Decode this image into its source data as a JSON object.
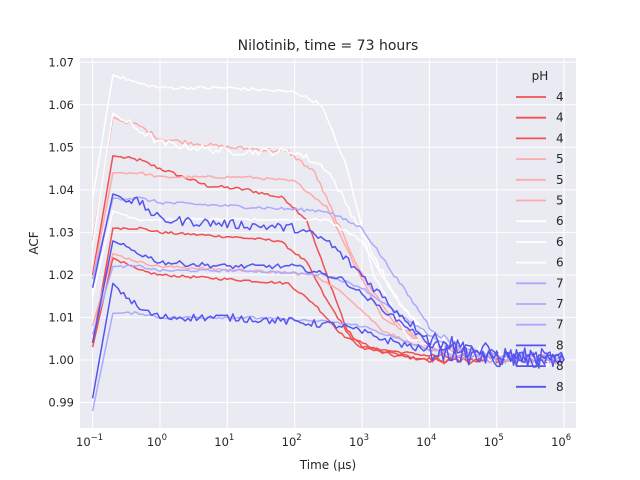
{
  "chart_data": {
    "type": "line",
    "title": "Nilotinib, time = 73 hours",
    "xlabel": "Time (μs)",
    "ylabel": "ACF",
    "xscale": "log",
    "xlim": [
      0.065,
      1500000
    ],
    "ylim": [
      0.984,
      1.071
    ],
    "x_ticks": [
      {
        "value": 0.1,
        "base": "10",
        "exp": "−1"
      },
      {
        "value": 1,
        "base": "10",
        "exp": "0"
      },
      {
        "value": 10,
        "base": "10",
        "exp": "1"
      },
      {
        "value": 100,
        "base": "10",
        "exp": "2"
      },
      {
        "value": 1000,
        "base": "10",
        "exp": "3"
      },
      {
        "value": 10000,
        "base": "10",
        "exp": "4"
      },
      {
        "value": 100000,
        "base": "10",
        "exp": "5"
      },
      {
        "value": 1000000,
        "base": "10",
        "exp": "6"
      }
    ],
    "y_ticks": [
      {
        "value": 0.99,
        "label": "0.99"
      },
      {
        "value": 1.0,
        "label": "1.00"
      },
      {
        "value": 1.01,
        "label": "1.01"
      },
      {
        "value": 1.02,
        "label": "1.02"
      },
      {
        "value": 1.03,
        "label": "1.03"
      },
      {
        "value": 1.04,
        "label": "1.04"
      },
      {
        "value": 1.05,
        "label": "1.05"
      },
      {
        "value": 1.06,
        "label": "1.06"
      },
      {
        "value": 1.07,
        "label": "1.07"
      }
    ],
    "grid": true,
    "background": "#eaeaf2",
    "legend": {
      "title": "pH",
      "placement": "right"
    },
    "series": [
      {
        "name": "4",
        "color": "#f05050",
        "noise": 0.0004,
        "points": [
          [
            0.1,
            1.02
          ],
          [
            0.2,
            1.048
          ],
          [
            0.5,
            1.047
          ],
          [
            1,
            1.045
          ],
          [
            5,
            1.041
          ],
          [
            20,
            1.04
          ],
          [
            70,
            1.038
          ],
          [
            150,
            1.033
          ],
          [
            300,
            1.02
          ],
          [
            600,
            1.007
          ],
          [
            1000,
            1.003
          ],
          [
            3000,
            1.001
          ],
          [
            10000,
            1.0
          ],
          [
            30000,
            1.0
          ],
          [
            100000,
            1.0
          ],
          [
            1000000,
            1.0
          ]
        ]
      },
      {
        "name": "4",
        "color": "#f05050",
        "noise": 0.0003,
        "points": [
          [
            0.1,
            1.004
          ],
          [
            0.2,
            1.031
          ],
          [
            0.5,
            1.031
          ],
          [
            1,
            1.03
          ],
          [
            10,
            1.029
          ],
          [
            60,
            1.028
          ],
          [
            150,
            1.023
          ],
          [
            300,
            1.014
          ],
          [
            700,
            1.005
          ],
          [
            2000,
            1.002
          ],
          [
            10000,
            1.0
          ],
          [
            100000,
            1.0
          ],
          [
            1000000,
            1.0
          ]
        ]
      },
      {
        "name": "4",
        "color": "#f05050",
        "noise": 0.0003,
        "points": [
          [
            0.1,
            1.003
          ],
          [
            0.2,
            1.024
          ],
          [
            0.5,
            1.021
          ],
          [
            1,
            1.02
          ],
          [
            10,
            1.019
          ],
          [
            80,
            1.018
          ],
          [
            200,
            1.013
          ],
          [
            500,
            1.006
          ],
          [
            1000,
            1.003
          ],
          [
            10000,
            1.001
          ],
          [
            100000,
            1.0
          ],
          [
            1000000,
            1.0
          ]
        ]
      },
      {
        "name": "5",
        "color": "#ffaaaa",
        "noise": 0.0005,
        "points": [
          [
            0.1,
            1.028
          ],
          [
            0.2,
            1.057
          ],
          [
            0.5,
            1.055
          ],
          [
            1,
            1.052
          ],
          [
            10,
            1.05
          ],
          [
            80,
            1.049
          ],
          [
            200,
            1.044
          ],
          [
            500,
            1.03
          ],
          [
            1000,
            1.02
          ],
          [
            3000,
            1.009
          ],
          [
            10000,
            1.003
          ],
          [
            100000,
            1.001
          ],
          [
            1000000,
            1.0
          ]
        ]
      },
      {
        "name": "5",
        "color": "#ffaaaa",
        "noise": 0.0003,
        "points": [
          [
            0.1,
            1.019
          ],
          [
            0.2,
            1.044
          ],
          [
            0.5,
            1.044
          ],
          [
            1,
            1.043
          ],
          [
            20,
            1.043
          ],
          [
            100,
            1.042
          ],
          [
            300,
            1.036
          ],
          [
            800,
            1.022
          ],
          [
            2000,
            1.01
          ],
          [
            10000,
            1.003
          ],
          [
            100000,
            1.001
          ],
          [
            1000000,
            1.0
          ]
        ]
      },
      {
        "name": "5",
        "color": "#ffaaaa",
        "noise": 0.0003,
        "points": [
          [
            0.1,
            1.008
          ],
          [
            0.2,
            1.025
          ],
          [
            0.5,
            1.023
          ],
          [
            1,
            1.022
          ],
          [
            20,
            1.021
          ],
          [
            200,
            1.02
          ],
          [
            600,
            1.015
          ],
          [
            2000,
            1.007
          ],
          [
            10000,
            1.002
          ],
          [
            100000,
            1.0
          ],
          [
            1000000,
            1.0
          ]
        ]
      },
      {
        "name": "6",
        "color": "#ffffff",
        "noise": 0.0004,
        "points": [
          [
            0.1,
            1.038
          ],
          [
            0.2,
            1.067
          ],
          [
            0.5,
            1.065
          ],
          [
            1,
            1.064
          ],
          [
            10,
            1.064
          ],
          [
            100,
            1.063
          ],
          [
            250,
            1.06
          ],
          [
            600,
            1.045
          ],
          [
            1500,
            1.02
          ],
          [
            5000,
            1.005
          ],
          [
            20000,
            1.002
          ],
          [
            100000,
            1.001
          ],
          [
            1000000,
            1.0
          ]
        ]
      },
      {
        "name": "6",
        "color": "#ffffff",
        "noise": 0.0009,
        "points": [
          [
            0.1,
            1.027
          ],
          [
            0.2,
            1.058
          ],
          [
            0.5,
            1.054
          ],
          [
            1,
            1.051
          ],
          [
            10,
            1.049
          ],
          [
            100,
            1.049
          ],
          [
            300,
            1.045
          ],
          [
            1000,
            1.03
          ],
          [
            3000,
            1.015
          ],
          [
            10000,
            1.005
          ],
          [
            100000,
            1.001
          ],
          [
            1000000,
            1.0
          ]
        ]
      },
      {
        "name": "6",
        "color": "#ffffff",
        "noise": 0.0003,
        "points": [
          [
            0.1,
            1.015
          ],
          [
            0.2,
            1.035
          ],
          [
            0.5,
            1.033
          ],
          [
            1,
            1.033
          ],
          [
            50,
            1.033
          ],
          [
            300,
            1.033
          ],
          [
            1000,
            1.028
          ],
          [
            3000,
            1.015
          ],
          [
            10000,
            1.005
          ],
          [
            100000,
            1.001
          ],
          [
            1000000,
            1.0
          ]
        ]
      },
      {
        "name": "7",
        "color": "#aaaaff",
        "noise": 0.0004,
        "points": [
          [
            0.1,
            1.019
          ],
          [
            0.2,
            1.038
          ],
          [
            0.5,
            1.038
          ],
          [
            1,
            1.037
          ],
          [
            20,
            1.036
          ],
          [
            300,
            1.035
          ],
          [
            1000,
            1.031
          ],
          [
            3000,
            1.02
          ],
          [
            10000,
            1.008
          ],
          [
            30000,
            1.002
          ],
          [
            100000,
            1.001
          ],
          [
            1000000,
            1.0
          ]
        ]
      },
      {
        "name": "7",
        "color": "#aaaaff",
        "noise": 0.0003,
        "points": [
          [
            0.1,
            1.006
          ],
          [
            0.2,
            1.022
          ],
          [
            0.5,
            1.022
          ],
          [
            1,
            1.021
          ],
          [
            20,
            1.021
          ],
          [
            300,
            1.02
          ],
          [
            1000,
            1.017
          ],
          [
            5000,
            1.009
          ],
          [
            20000,
            1.003
          ],
          [
            100000,
            1.001
          ],
          [
            1000000,
            1.0
          ]
        ]
      },
      {
        "name": "7",
        "color": "#aaaaff",
        "noise": 0.0003,
        "points": [
          [
            0.1,
            0.988
          ],
          [
            0.2,
            1.011
          ],
          [
            0.5,
            1.011
          ],
          [
            1,
            1.01
          ],
          [
            20,
            1.01
          ],
          [
            300,
            1.009
          ],
          [
            1000,
            1.008
          ],
          [
            5000,
            1.004
          ],
          [
            20000,
            1.001
          ],
          [
            100000,
            1.0
          ],
          [
            1000000,
            1.0
          ]
        ]
      },
      {
        "name": "8",
        "color": "#5555ee",
        "noise": 0.0011,
        "points": [
          [
            0.1,
            1.017
          ],
          [
            0.2,
            1.039
          ],
          [
            0.5,
            1.037
          ],
          [
            1,
            1.033
          ],
          [
            10,
            1.032
          ],
          [
            100,
            1.031
          ],
          [
            300,
            1.028
          ],
          [
            1000,
            1.02
          ],
          [
            3000,
            1.012
          ],
          [
            10000,
            1.005
          ],
          [
            100000,
            1.001
          ],
          [
            1000000,
            1.0
          ]
        ]
      },
      {
        "name": "8",
        "color": "#5555ee",
        "noise": 0.0006,
        "points": [
          [
            0.1,
            1.004
          ],
          [
            0.2,
            1.028
          ],
          [
            0.5,
            1.025
          ],
          [
            1,
            1.023
          ],
          [
            10,
            1.022
          ],
          [
            100,
            1.022
          ],
          [
            500,
            1.019
          ],
          [
            2000,
            1.012
          ],
          [
            10000,
            1.004
          ],
          [
            100000,
            1.001
          ],
          [
            1000000,
            1.0
          ]
        ]
      },
      {
        "name": "8",
        "color": "#5555ee",
        "noise": 0.0009,
        "points": [
          [
            0.1,
            0.991
          ],
          [
            0.2,
            1.018
          ],
          [
            0.5,
            1.012
          ],
          [
            1,
            1.01
          ],
          [
            10,
            1.01
          ],
          [
            100,
            1.009
          ],
          [
            500,
            1.008
          ],
          [
            2000,
            1.005
          ],
          [
            10000,
            1.002
          ],
          [
            100000,
            1.0
          ],
          [
            1000000,
            1.0
          ]
        ]
      }
    ]
  }
}
